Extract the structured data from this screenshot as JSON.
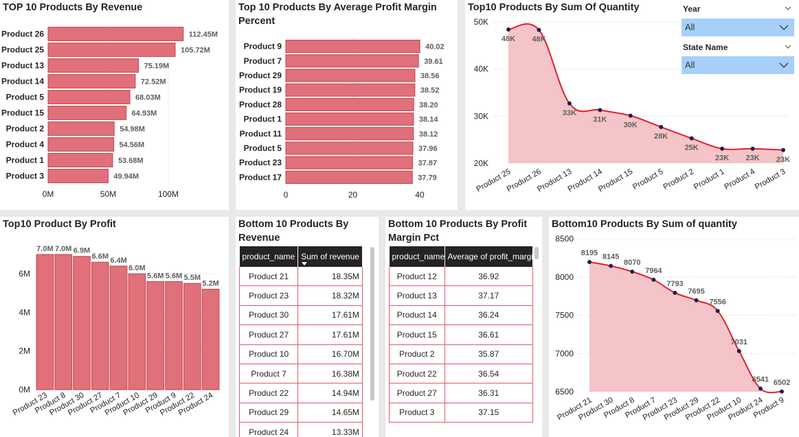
{
  "colors": {
    "bar": "#e0707a",
    "bar_stroke": "#c8404c",
    "line": "#e0202c",
    "area": "#f5c4c8",
    "marker": "#1f1f4a",
    "slicer": "#a6cffa",
    "header": "#252423"
  },
  "panels": {
    "revenue_top": {
      "title": "TOP 10 Products By Revenue"
    },
    "margin_top": {
      "title": "Top 10 Products By Average Profit Margin Percent"
    },
    "qty_top": {
      "title": "Top10 Products By Sum Of Quantity"
    },
    "profit_top": {
      "title": "Top10 Product By Profit"
    },
    "revenue_bottom": {
      "title": "Bottom 10 Products By Revenue"
    },
    "margin_bottom": {
      "title": "Bottom 10 Products By Profit Margin Pct"
    },
    "qty_bottom": {
      "title": "Bottom10 Products By Sum of quantity"
    }
  },
  "slicers": {
    "year": {
      "label": "Year",
      "value": "All"
    },
    "state": {
      "label": "State Name",
      "value": "All"
    }
  },
  "tables": {
    "revenue_bottom": {
      "headers": [
        "product_name",
        "Sum of revenue"
      ],
      "rows": [
        [
          "Product 21",
          "18.35M"
        ],
        [
          "Product 23",
          "18.32M"
        ],
        [
          "Product 30",
          "17.61M"
        ],
        [
          "Product 27",
          "17.61M"
        ],
        [
          "Product 10",
          "16.70M"
        ],
        [
          "Product 7",
          "16.38M"
        ],
        [
          "Product 22",
          "14.94M"
        ],
        [
          "Product 29",
          "14.65M"
        ],
        [
          "Product 24",
          "13.33M"
        ]
      ]
    },
    "margin_bottom": {
      "headers": [
        "product_name",
        "Average of profit_margin_"
      ],
      "rows": [
        [
          "Product 12",
          "36.92"
        ],
        [
          "Product 13",
          "37.17"
        ],
        [
          "Product 14",
          "36.24"
        ],
        [
          "Product 15",
          "36.61"
        ],
        [
          "Product 2",
          "35.87"
        ],
        [
          "Product 22",
          "36.54"
        ],
        [
          "Product 27",
          "36.31"
        ],
        [
          "Product 3",
          "37.15"
        ]
      ]
    }
  },
  "chart_data": [
    {
      "id": "revenue_top",
      "type": "bar",
      "orientation": "horizontal",
      "title": "TOP 10 Products By Revenue",
      "categories": [
        "Product 26",
        "Product 25",
        "Product 13",
        "Product 14",
        "Product 5",
        "Product 15",
        "Product 2",
        "Product 4",
        "Product 1",
        "Product 3"
      ],
      "values": [
        112.45,
        105.72,
        75.19,
        72.52,
        68.03,
        64.93,
        54.98,
        54.56,
        53.68,
        49.94
      ],
      "data_labels": [
        "112.45M",
        "105.72M",
        "75.19M",
        "72.52M",
        "68.03M",
        "64.93M",
        "54.98M",
        "54.56M",
        "53.68M",
        "49.94M"
      ],
      "ticks": [
        0,
        50,
        100
      ],
      "tick_labels": [
        "0M",
        "50M",
        "100M"
      ],
      "xlim": [
        0,
        120
      ],
      "grid": true
    },
    {
      "id": "margin_top",
      "type": "bar",
      "orientation": "horizontal",
      "title": "Top 10 Products By Average Profit Margin Percent",
      "categories": [
        "Product 9",
        "Product 7",
        "Product 29",
        "Product 19",
        "Product 28",
        "Product 1",
        "Product 11",
        "Product 5",
        "Product 23",
        "Product 17"
      ],
      "values": [
        40.02,
        39.61,
        38.56,
        38.52,
        38.2,
        38.14,
        38.12,
        37.96,
        37.87,
        37.79
      ],
      "data_labels": [
        "40.02",
        "39.61",
        "38.56",
        "38.52",
        "38.20",
        "38.14",
        "38.12",
        "37.96",
        "37.87",
        "37.79"
      ],
      "ticks": [
        0,
        20,
        40
      ],
      "tick_labels": [
        "0",
        "20",
        "40"
      ],
      "xlim": [
        0,
        40
      ],
      "grid": true
    },
    {
      "id": "qty_top",
      "type": "area",
      "title": "Top10 Products By Sum Of Quantity",
      "categories": [
        "Product 25",
        "Product 26",
        "Product 13",
        "Product 14",
        "Product 15",
        "Product 5",
        "Product 2",
        "Product 1",
        "Product 4",
        "Product 3"
      ],
      "values": [
        48400,
        48300,
        32700,
        31300,
        30100,
        27700,
        25300,
        23100,
        23100,
        22800
      ],
      "data_labels": [
        "48K",
        "48K",
        "33K",
        "31K",
        "30K",
        "28K",
        "25K",
        "23K",
        "23K",
        "23K"
      ],
      "ticks": [
        20000,
        30000,
        40000,
        50000
      ],
      "tick_labels": [
        "20K",
        "30K",
        "40K",
        "50K"
      ],
      "ylim": [
        20000,
        50000
      ],
      "grid": true
    },
    {
      "id": "profit_top",
      "type": "bar",
      "orientation": "vertical",
      "title": "Top10 Product By Profit",
      "categories": [
        "Product 23",
        "Product 8",
        "Product 30",
        "Product 27",
        "Product 7",
        "Product 10",
        "Product 29",
        "Product 9",
        "Product 22",
        "Product 24"
      ],
      "values": [
        7.0,
        7.0,
        6.9,
        6.6,
        6.4,
        6.0,
        5.6,
        5.6,
        5.5,
        5.2
      ],
      "data_labels": [
        "7.0M",
        "7.0M",
        "6.9M",
        "6.6M",
        "6.4M",
        "6.0M",
        "5.6M",
        "5.6M",
        "5.5M",
        "5.2M"
      ],
      "ticks": [
        0,
        2,
        4,
        6
      ],
      "tick_labels": [
        "0M",
        "2M",
        "4M",
        "6M"
      ],
      "ylim": [
        0,
        7.6
      ],
      "grid": true
    },
    {
      "id": "qty_bottom",
      "type": "area",
      "title": "Bottom10 Products By Sum of quantity",
      "categories": [
        "Product 21",
        "Product 30",
        "Product 8",
        "Product 7",
        "Product 23",
        "Product 29",
        "Product 22",
        "Product 10",
        "Product 24",
        "Product 9"
      ],
      "values": [
        8195,
        8145,
        8070,
        7964,
        7793,
        7695,
        7556,
        7031,
        6541,
        6502
      ],
      "data_labels": [
        "8195",
        "8145",
        "8070",
        "7964",
        "7793",
        "7695",
        "7556",
        "7031",
        "6541",
        "6502"
      ],
      "ticks": [
        6500,
        7000,
        7500,
        8000,
        8500
      ],
      "tick_labels": [
        "6500",
        "7000",
        "7500",
        "8000",
        "8500"
      ],
      "ylim": [
        6500,
        8500
      ],
      "grid": true
    }
  ]
}
